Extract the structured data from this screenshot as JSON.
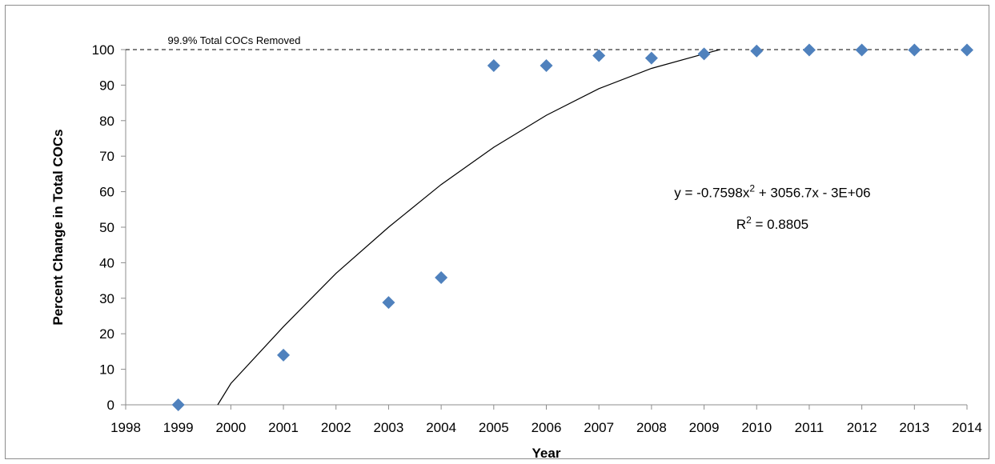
{
  "chart_data": {
    "type": "scatter",
    "title": "",
    "xlabel": "Year",
    "ylabel": "Percent Change in Total COCs",
    "xlim": [
      1998,
      2014
    ],
    "ylim": [
      0,
      100
    ],
    "x_ticks": [
      "1998",
      "1999",
      "2000",
      "2001",
      "2002",
      "2003",
      "2004",
      "2005",
      "2006",
      "2007",
      "2008",
      "2009",
      "2010",
      "2011",
      "2012",
      "2013",
      "2014"
    ],
    "y_ticks": [
      "0",
      "10",
      "20",
      "30",
      "40",
      "50",
      "60",
      "70",
      "80",
      "90",
      "100"
    ],
    "grid": false,
    "series": [
      {
        "marker": "diamond",
        "color": "#4f81bd",
        "points": [
          {
            "x": 1999,
            "y": 0
          },
          {
            "x": 2001,
            "y": 14
          },
          {
            "x": 2003,
            "y": 28.8
          },
          {
            "x": 2004,
            "y": 35.8
          },
          {
            "x": 2005,
            "y": 95.5
          },
          {
            "x": 2006,
            "y": 95.5
          },
          {
            "x": 2007,
            "y": 98.3
          },
          {
            "x": 2008,
            "y": 97.6
          },
          {
            "x": 2009,
            "y": 98.8
          },
          {
            "x": 2010,
            "y": 99.6
          },
          {
            "x": 2011,
            "y": 99.9
          },
          {
            "x": 2012,
            "y": 99.9
          },
          {
            "x": 2013,
            "y": 99.9
          },
          {
            "x": 2014,
            "y": 99.9
          }
        ]
      }
    ],
    "trendline": {
      "kind": "polynomial-2",
      "color": "#000000",
      "points": [
        {
          "x": 1999.75,
          "y": 0
        },
        {
          "x": 2000,
          "y": 6
        },
        {
          "x": 2001,
          "y": 22
        },
        {
          "x": 2002,
          "y": 37
        },
        {
          "x": 2003,
          "y": 50
        },
        {
          "x": 2004,
          "y": 62
        },
        {
          "x": 2005,
          "y": 72.5
        },
        {
          "x": 2006,
          "y": 81.5
        },
        {
          "x": 2007,
          "y": 89
        },
        {
          "x": 2008,
          "y": 94.7
        },
        {
          "x": 2009,
          "y": 98.8
        },
        {
          "x": 2009.3,
          "y": 100
        }
      ]
    },
    "reference_line": {
      "y": 100,
      "style": "dashed",
      "color": "#000000",
      "label": "99.9% Total COCs Removed"
    },
    "equation": {
      "line1_pre": "y = -0.7598x",
      "line1_sup": "2",
      "line1_post": " + 3056.7x - 3E+06",
      "line2_pre": "R",
      "line2_sup": "2",
      "line2_post": " = 0.8805"
    }
  }
}
